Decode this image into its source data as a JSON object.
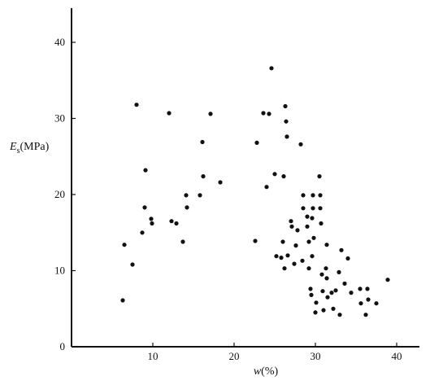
{
  "chart_data": {
    "type": "scatter",
    "title": "",
    "xlabel": {
      "symbol": "w",
      "unit": "(%)"
    },
    "ylabel": {
      "symbol": "E",
      "subscript": "s",
      "unit": "(MPa)"
    },
    "xlim": [
      0,
      43
    ],
    "ylim": [
      0,
      46
    ],
    "xticks": [
      10,
      20,
      30,
      40
    ],
    "yticks": [
      0,
      10,
      20,
      30,
      40
    ],
    "grid": false,
    "legend": false,
    "colors": {
      "points": "#111111",
      "axes": "#111111"
    },
    "series": [
      {
        "points": [
          {
            "x": 6.3,
            "y": 6.1
          },
          {
            "x": 6.5,
            "y": 13.4
          },
          {
            "x": 7.5,
            "y": 10.8
          },
          {
            "x": 8.0,
            "y": 31.8
          },
          {
            "x": 8.7,
            "y": 15.0
          },
          {
            "x": 9.0,
            "y": 18.3
          },
          {
            "x": 9.1,
            "y": 23.2
          },
          {
            "x": 9.8,
            "y": 16.8
          },
          {
            "x": 9.9,
            "y": 16.2
          },
          {
            "x": 12.0,
            "y": 30.7
          },
          {
            "x": 12.3,
            "y": 16.5
          },
          {
            "x": 12.9,
            "y": 16.2
          },
          {
            "x": 13.7,
            "y": 13.8
          },
          {
            "x": 14.1,
            "y": 19.9
          },
          {
            "x": 14.2,
            "y": 18.3
          },
          {
            "x": 15.8,
            "y": 19.9
          },
          {
            "x": 16.1,
            "y": 26.9
          },
          {
            "x": 16.2,
            "y": 22.4
          },
          {
            "x": 17.1,
            "y": 30.6
          },
          {
            "x": 18.3,
            "y": 21.6
          },
          {
            "x": 22.6,
            "y": 13.9
          },
          {
            "x": 22.8,
            "y": 26.8
          },
          {
            "x": 23.6,
            "y": 30.7
          },
          {
            "x": 24.0,
            "y": 21.0
          },
          {
            "x": 24.3,
            "y": 30.6
          },
          {
            "x": 24.6,
            "y": 36.6
          },
          {
            "x": 25.0,
            "y": 22.7
          },
          {
            "x": 25.2,
            "y": 11.9
          },
          {
            "x": 25.8,
            "y": 11.7
          },
          {
            "x": 26.0,
            "y": 13.8
          },
          {
            "x": 26.1,
            "y": 22.4
          },
          {
            "x": 26.2,
            "y": 10.3
          },
          {
            "x": 26.3,
            "y": 31.6
          },
          {
            "x": 26.4,
            "y": 29.6
          },
          {
            "x": 26.5,
            "y": 27.6
          },
          {
            "x": 26.6,
            "y": 12.0
          },
          {
            "x": 27.0,
            "y": 16.5
          },
          {
            "x": 27.1,
            "y": 15.8
          },
          {
            "x": 27.4,
            "y": 10.9
          },
          {
            "x": 27.6,
            "y": 13.3
          },
          {
            "x": 27.8,
            "y": 15.3
          },
          {
            "x": 28.2,
            "y": 26.6
          },
          {
            "x": 28.4,
            "y": 11.3
          },
          {
            "x": 28.5,
            "y": 19.9
          },
          {
            "x": 28.5,
            "y": 18.2
          },
          {
            "x": 29.0,
            "y": 17.1
          },
          {
            "x": 29.0,
            "y": 15.8
          },
          {
            "x": 29.2,
            "y": 13.8
          },
          {
            "x": 29.2,
            "y": 10.3
          },
          {
            "x": 29.4,
            "y": 7.6
          },
          {
            "x": 29.5,
            "y": 6.8
          },
          {
            "x": 29.6,
            "y": 16.9
          },
          {
            "x": 29.6,
            "y": 11.9
          },
          {
            "x": 29.7,
            "y": 18.2
          },
          {
            "x": 29.7,
            "y": 19.9
          },
          {
            "x": 29.8,
            "y": 14.3
          },
          {
            "x": 30.0,
            "y": 4.5
          },
          {
            "x": 30.1,
            "y": 5.8
          },
          {
            "x": 30.5,
            "y": 22.4
          },
          {
            "x": 30.6,
            "y": 19.9
          },
          {
            "x": 30.6,
            "y": 18.2
          },
          {
            "x": 30.7,
            "y": 16.2
          },
          {
            "x": 30.8,
            "y": 9.5
          },
          {
            "x": 30.9,
            "y": 7.3
          },
          {
            "x": 31.0,
            "y": 4.8
          },
          {
            "x": 31.3,
            "y": 10.3
          },
          {
            "x": 31.4,
            "y": 13.4
          },
          {
            "x": 31.4,
            "y": 9.0
          },
          {
            "x": 31.5,
            "y": 6.5
          },
          {
            "x": 32.0,
            "y": 7.1
          },
          {
            "x": 32.2,
            "y": 5.0
          },
          {
            "x": 32.5,
            "y": 7.4
          },
          {
            "x": 32.9,
            "y": 9.8
          },
          {
            "x": 33.0,
            "y": 4.2
          },
          {
            "x": 33.2,
            "y": 12.7
          },
          {
            "x": 33.6,
            "y": 8.3
          },
          {
            "x": 34.0,
            "y": 11.6
          },
          {
            "x": 34.4,
            "y": 7.1
          },
          {
            "x": 35.5,
            "y": 7.6
          },
          {
            "x": 35.6,
            "y": 5.7
          },
          {
            "x": 36.2,
            "y": 4.2
          },
          {
            "x": 36.4,
            "y": 7.6
          },
          {
            "x": 36.5,
            "y": 6.2
          },
          {
            "x": 37.5,
            "y": 5.7
          },
          {
            "x": 38.9,
            "y": 8.8
          }
        ]
      }
    ]
  }
}
